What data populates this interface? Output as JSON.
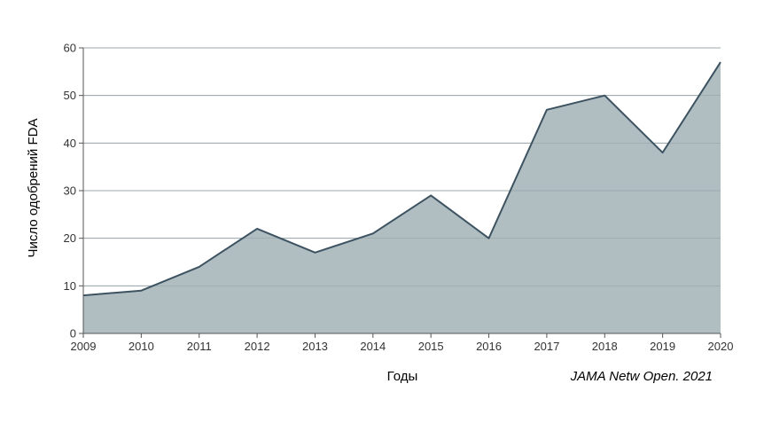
{
  "chart_data": {
    "type": "area",
    "title": "",
    "xlabel": "Годы",
    "ylabel": "Число одобрений FDA",
    "x": [
      2009,
      2010,
      2011,
      2012,
      2013,
      2014,
      2015,
      2016,
      2017,
      2018,
      2019,
      2020
    ],
    "values": [
      8,
      9,
      14,
      22,
      17,
      21,
      29,
      20,
      47,
      50,
      38,
      57
    ],
    "xlim": [
      2009,
      2020
    ],
    "ylim": [
      0,
      60
    ],
    "yticks": [
      0,
      10,
      20,
      30,
      40,
      50,
      60
    ],
    "grid": true,
    "fill_color": "#b0bec2",
    "line_color": "#3d5361",
    "source": "JAMA Netw Open. 2021"
  }
}
